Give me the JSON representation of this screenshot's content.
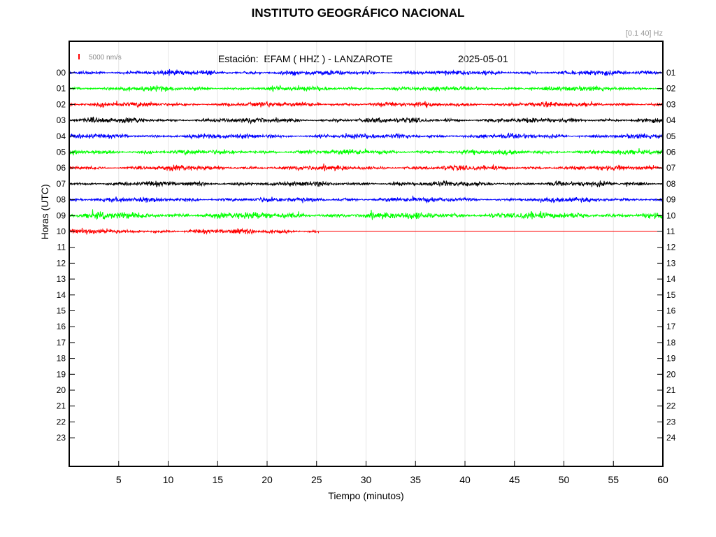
{
  "title": "INSTITUTO GEOGRÁFICO NACIONAL",
  "station_label": "Estación:  EFAM ( HHZ ) - LANZAROTE",
  "date": "2025-05-01",
  "filter": "[0.1 40] Hz",
  "scale_label": "5000 nm/s",
  "scale_color": "#ff0000",
  "chart_data": {
    "type": "line",
    "title": "INSTITUTO GEOGRÁFICO NACIONAL",
    "xlabel": "Tiempo (minutos)",
    "ylabel": "Horas (UTC)",
    "xlim": [
      0,
      60
    ],
    "x_ticks": [
      5,
      10,
      15,
      20,
      25,
      30,
      35,
      40,
      45,
      50,
      55,
      60
    ],
    "y_ticks_left": [
      "00",
      "01",
      "02",
      "03",
      "04",
      "05",
      "06",
      "07",
      "08",
      "09",
      "10",
      "11",
      "12",
      "13",
      "14",
      "15",
      "16",
      "17",
      "18",
      "19",
      "20",
      "21",
      "22",
      "23"
    ],
    "y_ticks_right": [
      "01",
      "02",
      "03",
      "04",
      "05",
      "06",
      "07",
      "08",
      "09",
      "10",
      "11",
      "12",
      "13",
      "14",
      "15",
      "16",
      "17",
      "18",
      "19",
      "20",
      "21",
      "22",
      "23",
      "24"
    ],
    "grid": "vertical",
    "trace_colors": [
      "#0000ff",
      "#00ff00",
      "#ff0000",
      "#000000"
    ],
    "series": [
      {
        "hour": "00",
        "color": "#0000ff",
        "x_end": 60,
        "amplitude": "medium"
      },
      {
        "hour": "01",
        "color": "#00ff00",
        "x_end": 60,
        "amplitude": "medium"
      },
      {
        "hour": "02",
        "color": "#ff0000",
        "x_end": 60,
        "amplitude": "medium"
      },
      {
        "hour": "03",
        "color": "#000000",
        "x_end": 60,
        "amplitude": "medium"
      },
      {
        "hour": "04",
        "color": "#0000ff",
        "x_end": 60,
        "amplitude": "medium"
      },
      {
        "hour": "05",
        "color": "#00ff00",
        "x_end": 60,
        "amplitude": "medium"
      },
      {
        "hour": "06",
        "color": "#ff0000",
        "x_end": 60,
        "amplitude": "medium"
      },
      {
        "hour": "07",
        "color": "#000000",
        "x_end": 60,
        "amplitude": "medium"
      },
      {
        "hour": "08",
        "color": "#0000ff",
        "x_end": 60,
        "amplitude": "medium"
      },
      {
        "hour": "09",
        "color": "#00ff00",
        "x_end": 60,
        "amplitude": "high"
      },
      {
        "hour": "10",
        "color": "#ff0000",
        "x_end": 25.3,
        "amplitude": "medium",
        "flat_to": 60
      }
    ]
  }
}
